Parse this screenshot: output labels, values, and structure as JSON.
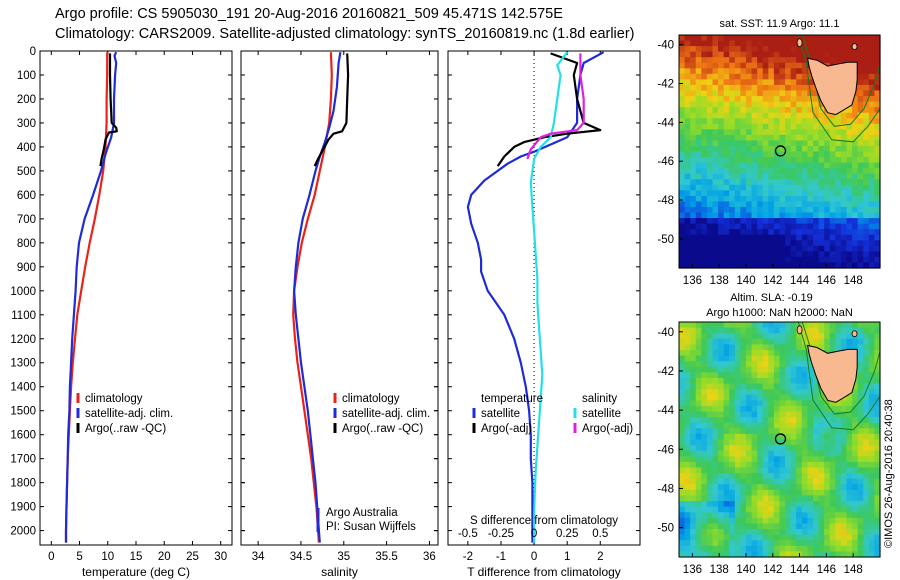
{
  "title_line1": "Argo profile: CS 5905030_191 20-Aug-2016 20160821_509 45.471S 142.575E",
  "title_line2": "Climatology: CARS2009. Satellite-adjusted climatology: synTS_20160819.nc (1.8d earlier)",
  "colors": {
    "climatology": "#e8231c",
    "satellite": "#1f2bd6",
    "argo": "#000000",
    "satellite_s": "#24e0e6",
    "argo_s": "#e020e0",
    "land": "#f8b890",
    "coast": "#000000",
    "contour": "#1a7a1a"
  },
  "chart_data": [
    {
      "type": "line",
      "panel": "temperature",
      "xlabel": "temperature (deg C)",
      "ylabel": "",
      "xlim": [
        -2,
        32
      ],
      "ylim": [
        2060,
        0
      ],
      "xticks": [
        0,
        5,
        10,
        15,
        20,
        25,
        30
      ],
      "yticks": [
        0,
        100,
        200,
        300,
        400,
        500,
        600,
        700,
        800,
        900,
        1000,
        1100,
        1200,
        1300,
        1400,
        1500,
        1600,
        1700,
        1800,
        1900,
        2000
      ],
      "legend": [
        "climatology",
        "satellite-adj. clim.",
        "Argo(..raw -QC)"
      ],
      "series": [
        {
          "name": "climatology",
          "color_key": "climatology",
          "points": [
            [
              9.9,
              5
            ],
            [
              9.9,
              100
            ],
            [
              9.8,
              200
            ],
            [
              9.8,
              300
            ],
            [
              9.6,
              400
            ],
            [
              9.2,
              500
            ],
            [
              8.5,
              600
            ],
            [
              7.7,
              700
            ],
            [
              6.8,
              800
            ],
            [
              6.0,
              900
            ],
            [
              5.3,
              1000
            ],
            [
              4.6,
              1100
            ],
            [
              4.2,
              1200
            ],
            [
              3.8,
              1300
            ],
            [
              3.5,
              1400
            ],
            [
              3.3,
              1500
            ],
            [
              3.1,
              1600
            ],
            [
              2.9,
              1700
            ],
            [
              2.8,
              1800
            ],
            [
              2.7,
              1900
            ],
            [
              2.6,
              2000
            ],
            [
              2.6,
              2050
            ]
          ]
        },
        {
          "name": "satellite-adj. clim.",
          "color_key": "satellite",
          "points": [
            [
              11.5,
              5
            ],
            [
              11.2,
              20
            ],
            [
              11.5,
              50
            ],
            [
              11.3,
              100
            ],
            [
              11.1,
              200
            ],
            [
              11.1,
              300
            ],
            [
              10.6,
              360
            ],
            [
              9.6,
              430
            ],
            [
              8.8,
              500
            ],
            [
              7.4,
              600
            ],
            [
              5.9,
              700
            ],
            [
              4.9,
              800
            ],
            [
              4.5,
              900
            ],
            [
              4.3,
              1000
            ],
            [
              4.0,
              1100
            ],
            [
              3.7,
              1200
            ],
            [
              3.5,
              1300
            ],
            [
              3.3,
              1400
            ],
            [
              3.2,
              1500
            ],
            [
              3.0,
              1600
            ],
            [
              2.9,
              1700
            ],
            [
              2.8,
              1800
            ],
            [
              2.7,
              1900
            ],
            [
              2.6,
              2000
            ],
            [
              2.6,
              2050
            ]
          ]
        },
        {
          "name": "Argo(..raw -QC)",
          "color_key": "argo",
          "points": [
            [
              10.4,
              10
            ],
            [
              10.4,
              100
            ],
            [
              10.5,
              200
            ],
            [
              10.7,
              300
            ],
            [
              11.5,
              320
            ],
            [
              11.6,
              335
            ],
            [
              10.2,
              340
            ],
            [
              9.6,
              370
            ],
            [
              9.3,
              410
            ],
            [
              8.9,
              450
            ],
            [
              8.7,
              480
            ]
          ]
        }
      ]
    },
    {
      "type": "line",
      "panel": "salinity",
      "xlabel": "salinity",
      "ylabel": "",
      "xlim": [
        33.8,
        36.1
      ],
      "ylim": [
        2060,
        0
      ],
      "xticks": [
        34,
        34.5,
        35,
        35.5,
        36
      ],
      "xticklabels": [
        "34",
        "34.5",
        "35",
        "35.5",
        "36"
      ],
      "legend": [
        "climatology",
        "satellite-adj. clim.",
        "Argo(..raw -QC)"
      ],
      "annotation": [
        "Argo Australia",
        "PI: Susan Wijffels"
      ],
      "series": [
        {
          "name": "climatology",
          "color_key": "climatology",
          "points": [
            [
              34.85,
              5
            ],
            [
              34.86,
              100
            ],
            [
              34.85,
              200
            ],
            [
              34.83,
              300
            ],
            [
              34.78,
              400
            ],
            [
              34.72,
              500
            ],
            [
              34.66,
              600
            ],
            [
              34.58,
              700
            ],
            [
              34.51,
              800
            ],
            [
              34.46,
              900
            ],
            [
              34.42,
              1000
            ],
            [
              34.41,
              1100
            ],
            [
              34.43,
              1200
            ],
            [
              34.46,
              1300
            ],
            [
              34.5,
              1400
            ],
            [
              34.54,
              1500
            ],
            [
              34.58,
              1600
            ],
            [
              34.62,
              1700
            ],
            [
              34.65,
              1800
            ],
            [
              34.68,
              1900
            ],
            [
              34.7,
              2000
            ],
            [
              34.71,
              2050
            ]
          ]
        },
        {
          "name": "satellite-adj. clim.",
          "color_key": "satellite",
          "points": [
            [
              34.96,
              5
            ],
            [
              34.94,
              50
            ],
            [
              34.92,
              150
            ],
            [
              34.88,
              250
            ],
            [
              34.83,
              320
            ],
            [
              34.78,
              380
            ],
            [
              34.72,
              440
            ],
            [
              34.67,
              500
            ],
            [
              34.6,
              600
            ],
            [
              34.52,
              700
            ],
            [
              34.47,
              800
            ],
            [
              34.44,
              900
            ],
            [
              34.42,
              1000
            ],
            [
              34.44,
              1100
            ],
            [
              34.47,
              1200
            ],
            [
              34.5,
              1300
            ],
            [
              34.54,
              1400
            ],
            [
              34.58,
              1500
            ],
            [
              34.61,
              1600
            ],
            [
              34.64,
              1700
            ],
            [
              34.67,
              1800
            ],
            [
              34.69,
              1900
            ],
            [
              34.71,
              2000
            ],
            [
              34.72,
              2050
            ]
          ]
        },
        {
          "name": "Argo(..raw -QC)",
          "color_key": "argo",
          "points": [
            [
              35.04,
              10
            ],
            [
              35.05,
              100
            ],
            [
              35.04,
              200
            ],
            [
              35.03,
              300
            ],
            [
              34.98,
              335
            ],
            [
              34.88,
              345
            ],
            [
              34.82,
              370
            ],
            [
              34.76,
              410
            ],
            [
              34.7,
              450
            ],
            [
              34.66,
              480
            ]
          ]
        }
      ]
    },
    {
      "type": "line",
      "panel": "difference",
      "xlabel": "T difference from climatology",
      "xlabel_top": "S difference from climatology",
      "xlim": [
        -2.6,
        3.2
      ],
      "ylim": [
        2060,
        0
      ],
      "xticks": [
        -2,
        -1,
        0,
        1,
        2
      ],
      "top_ticks": [
        -0.5,
        -0.25,
        0,
        0.25,
        0.5
      ],
      "legend_headers": [
        "temperature",
        "salinity"
      ],
      "legend_left": [
        "satellite",
        "Argo(-adj)"
      ],
      "legend_right": [
        "satellite",
        "Argo(-adj)"
      ],
      "series": [
        {
          "name": "temperature satellite",
          "color_key": "satellite",
          "points": [
            [
              2.1,
              5
            ],
            [
              1.5,
              50
            ],
            [
              1.4,
              100
            ],
            [
              1.3,
              200
            ],
            [
              1.3,
              300
            ],
            [
              1.0,
              360
            ],
            [
              0.0,
              420
            ],
            [
              -0.4,
              440
            ],
            [
              -0.8,
              470
            ],
            [
              -1.5,
              540
            ],
            [
              -1.9,
              600
            ],
            [
              -2.0,
              650
            ],
            [
              -1.9,
              720
            ],
            [
              -1.7,
              800
            ],
            [
              -1.6,
              870
            ],
            [
              -1.6,
              920
            ],
            [
              -1.4,
              1000
            ],
            [
              -0.9,
              1100
            ],
            [
              -0.6,
              1200
            ],
            [
              -0.4,
              1300
            ],
            [
              -0.25,
              1400
            ],
            [
              -0.15,
              1500
            ],
            [
              -0.1,
              1600
            ],
            [
              -0.1,
              1700
            ],
            [
              -0.05,
              1800
            ],
            [
              -0.05,
              1900
            ],
            [
              -0.05,
              2000
            ],
            [
              -0.05,
              2050
            ]
          ]
        },
        {
          "name": "temperature Argo(-adj)",
          "color_key": "argo",
          "points": [
            [
              0.5,
              10
            ],
            [
              1.3,
              50
            ],
            [
              1.2,
              100
            ],
            [
              1.3,
              200
            ],
            [
              1.5,
              300
            ],
            [
              2.0,
              330
            ],
            [
              1.0,
              345
            ],
            [
              0.3,
              360
            ],
            [
              -0.3,
              380
            ],
            [
              -0.6,
              400
            ],
            [
              -0.9,
              440
            ],
            [
              -1.1,
              480
            ]
          ]
        },
        {
          "name": "salinity satellite",
          "color_key": "satellite_s",
          "points": [
            [
              1.0,
              5
            ],
            [
              0.7,
              60
            ],
            [
              0.8,
              100
            ],
            [
              0.7,
              200
            ],
            [
              0.6,
              300
            ],
            [
              0.5,
              360
            ],
            [
              0.2,
              400
            ],
            [
              0.0,
              450
            ],
            [
              -0.1,
              550
            ],
            [
              -0.05,
              650
            ],
            [
              0.0,
              750
            ],
            [
              0.05,
              850
            ],
            [
              0.1,
              950
            ],
            [
              0.1,
              1050
            ],
            [
              0.15,
              1150
            ],
            [
              0.2,
              1250
            ],
            [
              0.25,
              1350
            ],
            [
              0.2,
              1450
            ],
            [
              0.15,
              1550
            ],
            [
              0.1,
              1650
            ],
            [
              0.05,
              1750
            ],
            [
              0.02,
              1850
            ],
            [
              0.0,
              1950
            ],
            [
              0.0,
              2050
            ]
          ]
        },
        {
          "name": "salinity Argo(-adj)",
          "color_key": "argo_s",
          "points": [
            [
              1.4,
              10
            ],
            [
              1.4,
              100
            ],
            [
              1.5,
              200
            ],
            [
              1.5,
              300
            ],
            [
              1.3,
              330
            ],
            [
              0.5,
              345
            ],
            [
              0.2,
              360
            ],
            [
              -0.1,
              410
            ],
            [
              -0.2,
              450
            ]
          ]
        }
      ]
    },
    {
      "type": "heatmap",
      "panel": "sst_map",
      "title": "sat. SST: 11.9  Argo: 11.1",
      "xticks": [
        136,
        138,
        140,
        142,
        144,
        146,
        148
      ],
      "yticks": [
        -40,
        -42,
        -44,
        -46,
        -48,
        -50
      ],
      "xlim": [
        135,
        150
      ],
      "ylim": [
        -51.5,
        -39.5
      ],
      "float_position": [
        142.575,
        -45.471
      ]
    },
    {
      "type": "heatmap",
      "panel": "sla_map",
      "title": "Altim. SLA: -0.19",
      "subtitle": "Argo h1000: NaN h2000: NaN",
      "xticks": [
        136,
        138,
        140,
        142,
        144,
        146,
        148
      ],
      "yticks": [
        -40,
        -42,
        -44,
        -46,
        -48,
        -50
      ],
      "xlim": [
        135,
        150
      ],
      "ylim": [
        -51.5,
        -39.5
      ],
      "float_position": [
        142.575,
        -45.471
      ]
    }
  ],
  "side_text": "©IMOS 26-Aug-2016 20:40:38"
}
